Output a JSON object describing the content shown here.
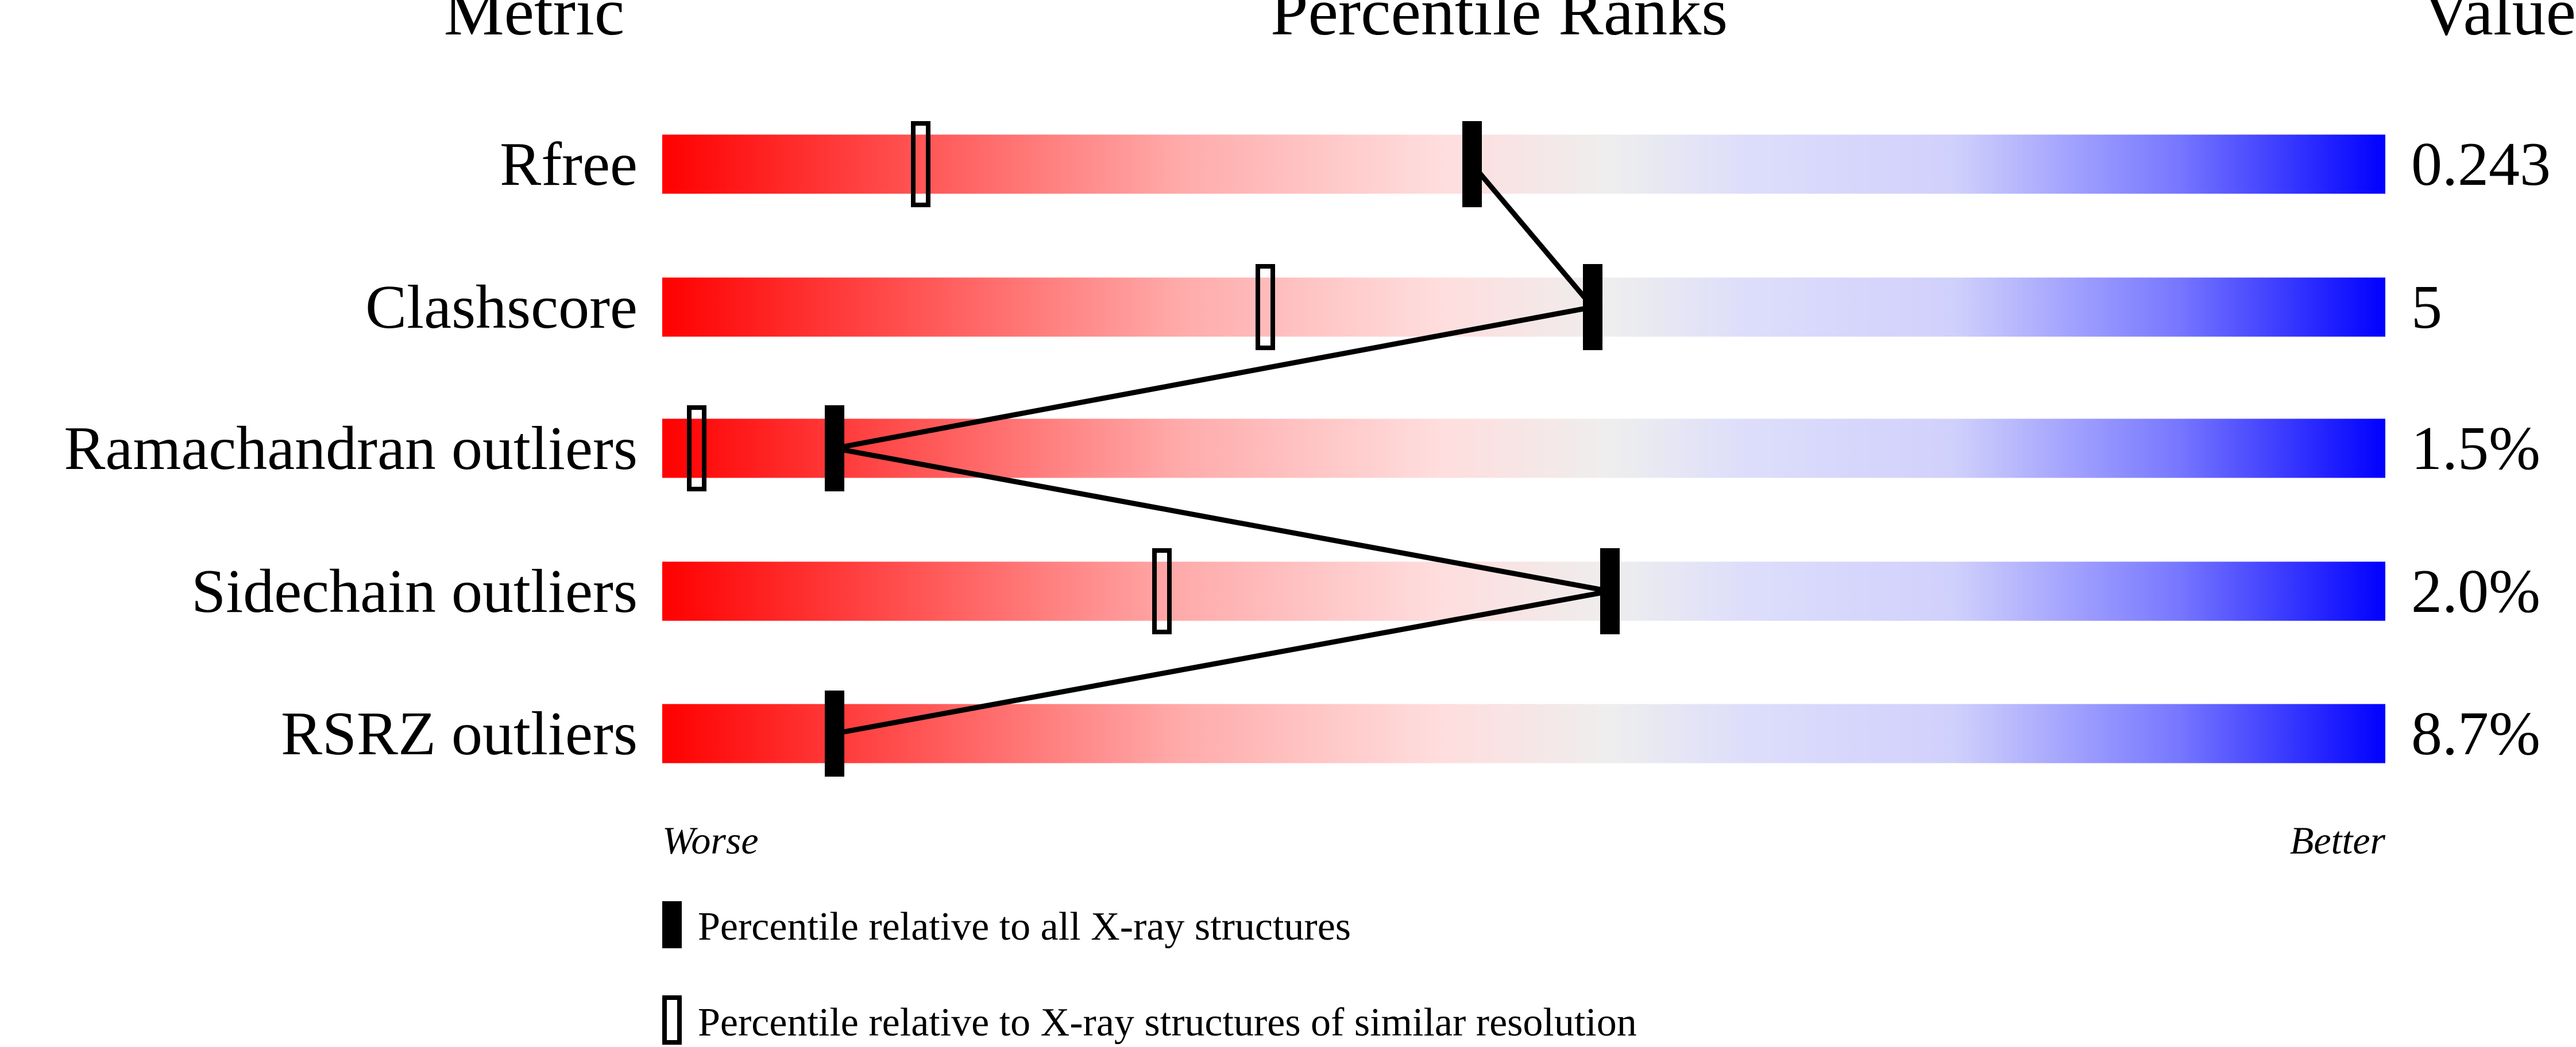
{
  "chart_data": {
    "type": "bar",
    "headers": {
      "metric": "Metric",
      "ranks": "Percentile Ranks",
      "value": "Value"
    },
    "xlim": [
      0,
      100
    ],
    "axis_labels": {
      "left": "Worse",
      "right": "Better"
    },
    "metrics": [
      {
        "name": "Rfree",
        "value": "0.243",
        "percentile_all": 47,
        "percentile_similar": 15
      },
      {
        "name": "Clashscore",
        "value": "5",
        "percentile_all": 54,
        "percentile_similar": 35
      },
      {
        "name": "Ramachandran outliers",
        "value": "1.5%",
        "percentile_all": 10,
        "percentile_similar": 2
      },
      {
        "name": "Sidechain outliers",
        "value": "2.0%",
        "percentile_all": 55,
        "percentile_similar": 29
      },
      {
        "name": "RSRZ outliers",
        "value": "8.7%",
        "percentile_all": 10,
        "percentile_similar": null
      }
    ],
    "legend": [
      {
        "marker": "filled",
        "label": "Percentile relative to all X-ray structures"
      },
      {
        "marker": "open",
        "label": "Percentile relative to X-ray structures of similar resolution"
      }
    ],
    "colors": {
      "worse": "#ff0000",
      "middle": "#eeeeee",
      "better": "#0000ff",
      "marker": "#000000"
    }
  }
}
